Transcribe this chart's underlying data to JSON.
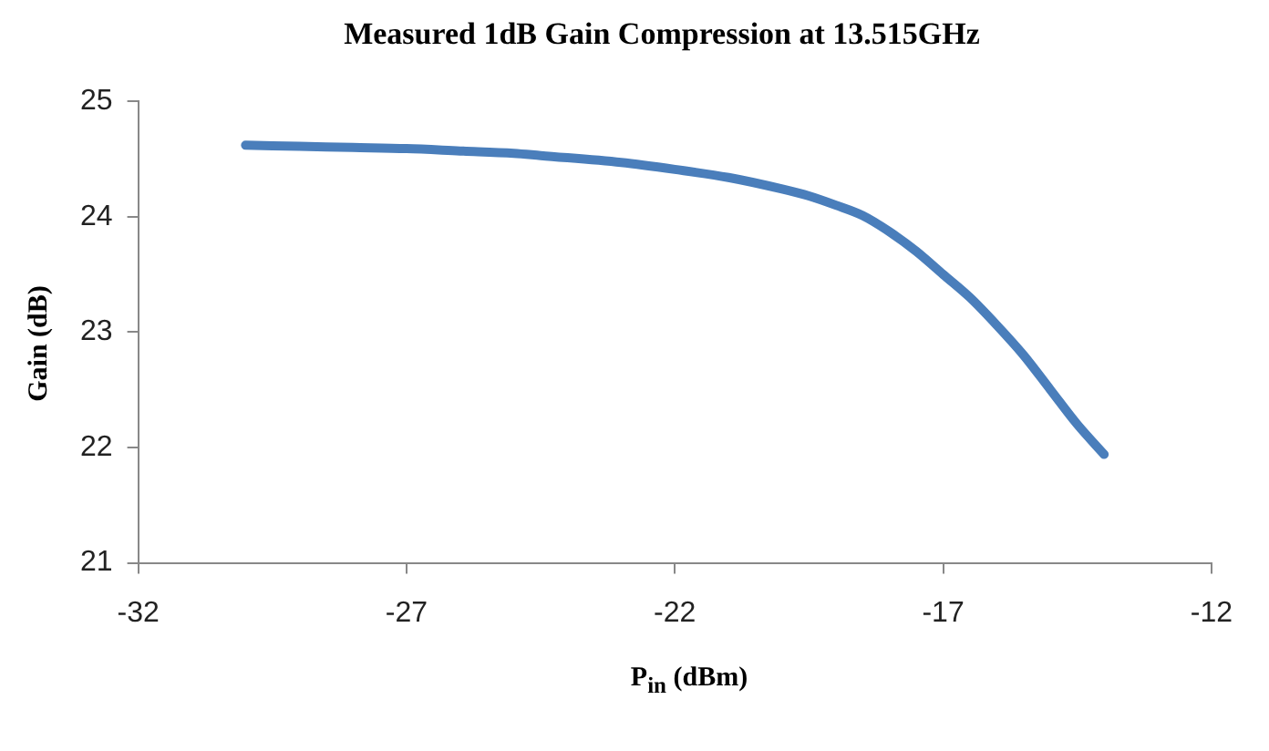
{
  "chart_data": {
    "type": "line",
    "title": "Measured 1dB Gain Compression at 13.515GHz",
    "xlabel": "P$_{in}$ (dBm)",
    "ylabel": "Gain (dB)",
    "series": [
      {
        "color": "#4a7ebb",
        "x": [
          -30,
          -29,
          -28,
          -27,
          -26,
          -25,
          -24.5,
          -23,
          -22,
          -21,
          -20,
          -19.5,
          -19,
          -18.5,
          -18,
          -17.5,
          -17,
          -16.5,
          -16,
          -15.5,
          -15,
          -14.5,
          -14
        ],
        "values": [
          24.62,
          24.61,
          24.6,
          24.59,
          24.57,
          24.55,
          24.53,
          24.47,
          24.41,
          24.34,
          24.24,
          24.18,
          24.1,
          24.01,
          23.87,
          23.7,
          23.5,
          23.3,
          23.06,
          22.8,
          22.5,
          22.2,
          21.94
        ]
      }
    ],
    "xlim": [
      -32,
      -12
    ],
    "xticks": [
      -32,
      -27,
      -22,
      -17,
      -12
    ],
    "ylim": [
      21,
      25
    ],
    "yticks": [
      21,
      22,
      23,
      24,
      25
    ],
    "grid": false,
    "legend": false,
    "marker": "none",
    "line_style": "solid"
  }
}
